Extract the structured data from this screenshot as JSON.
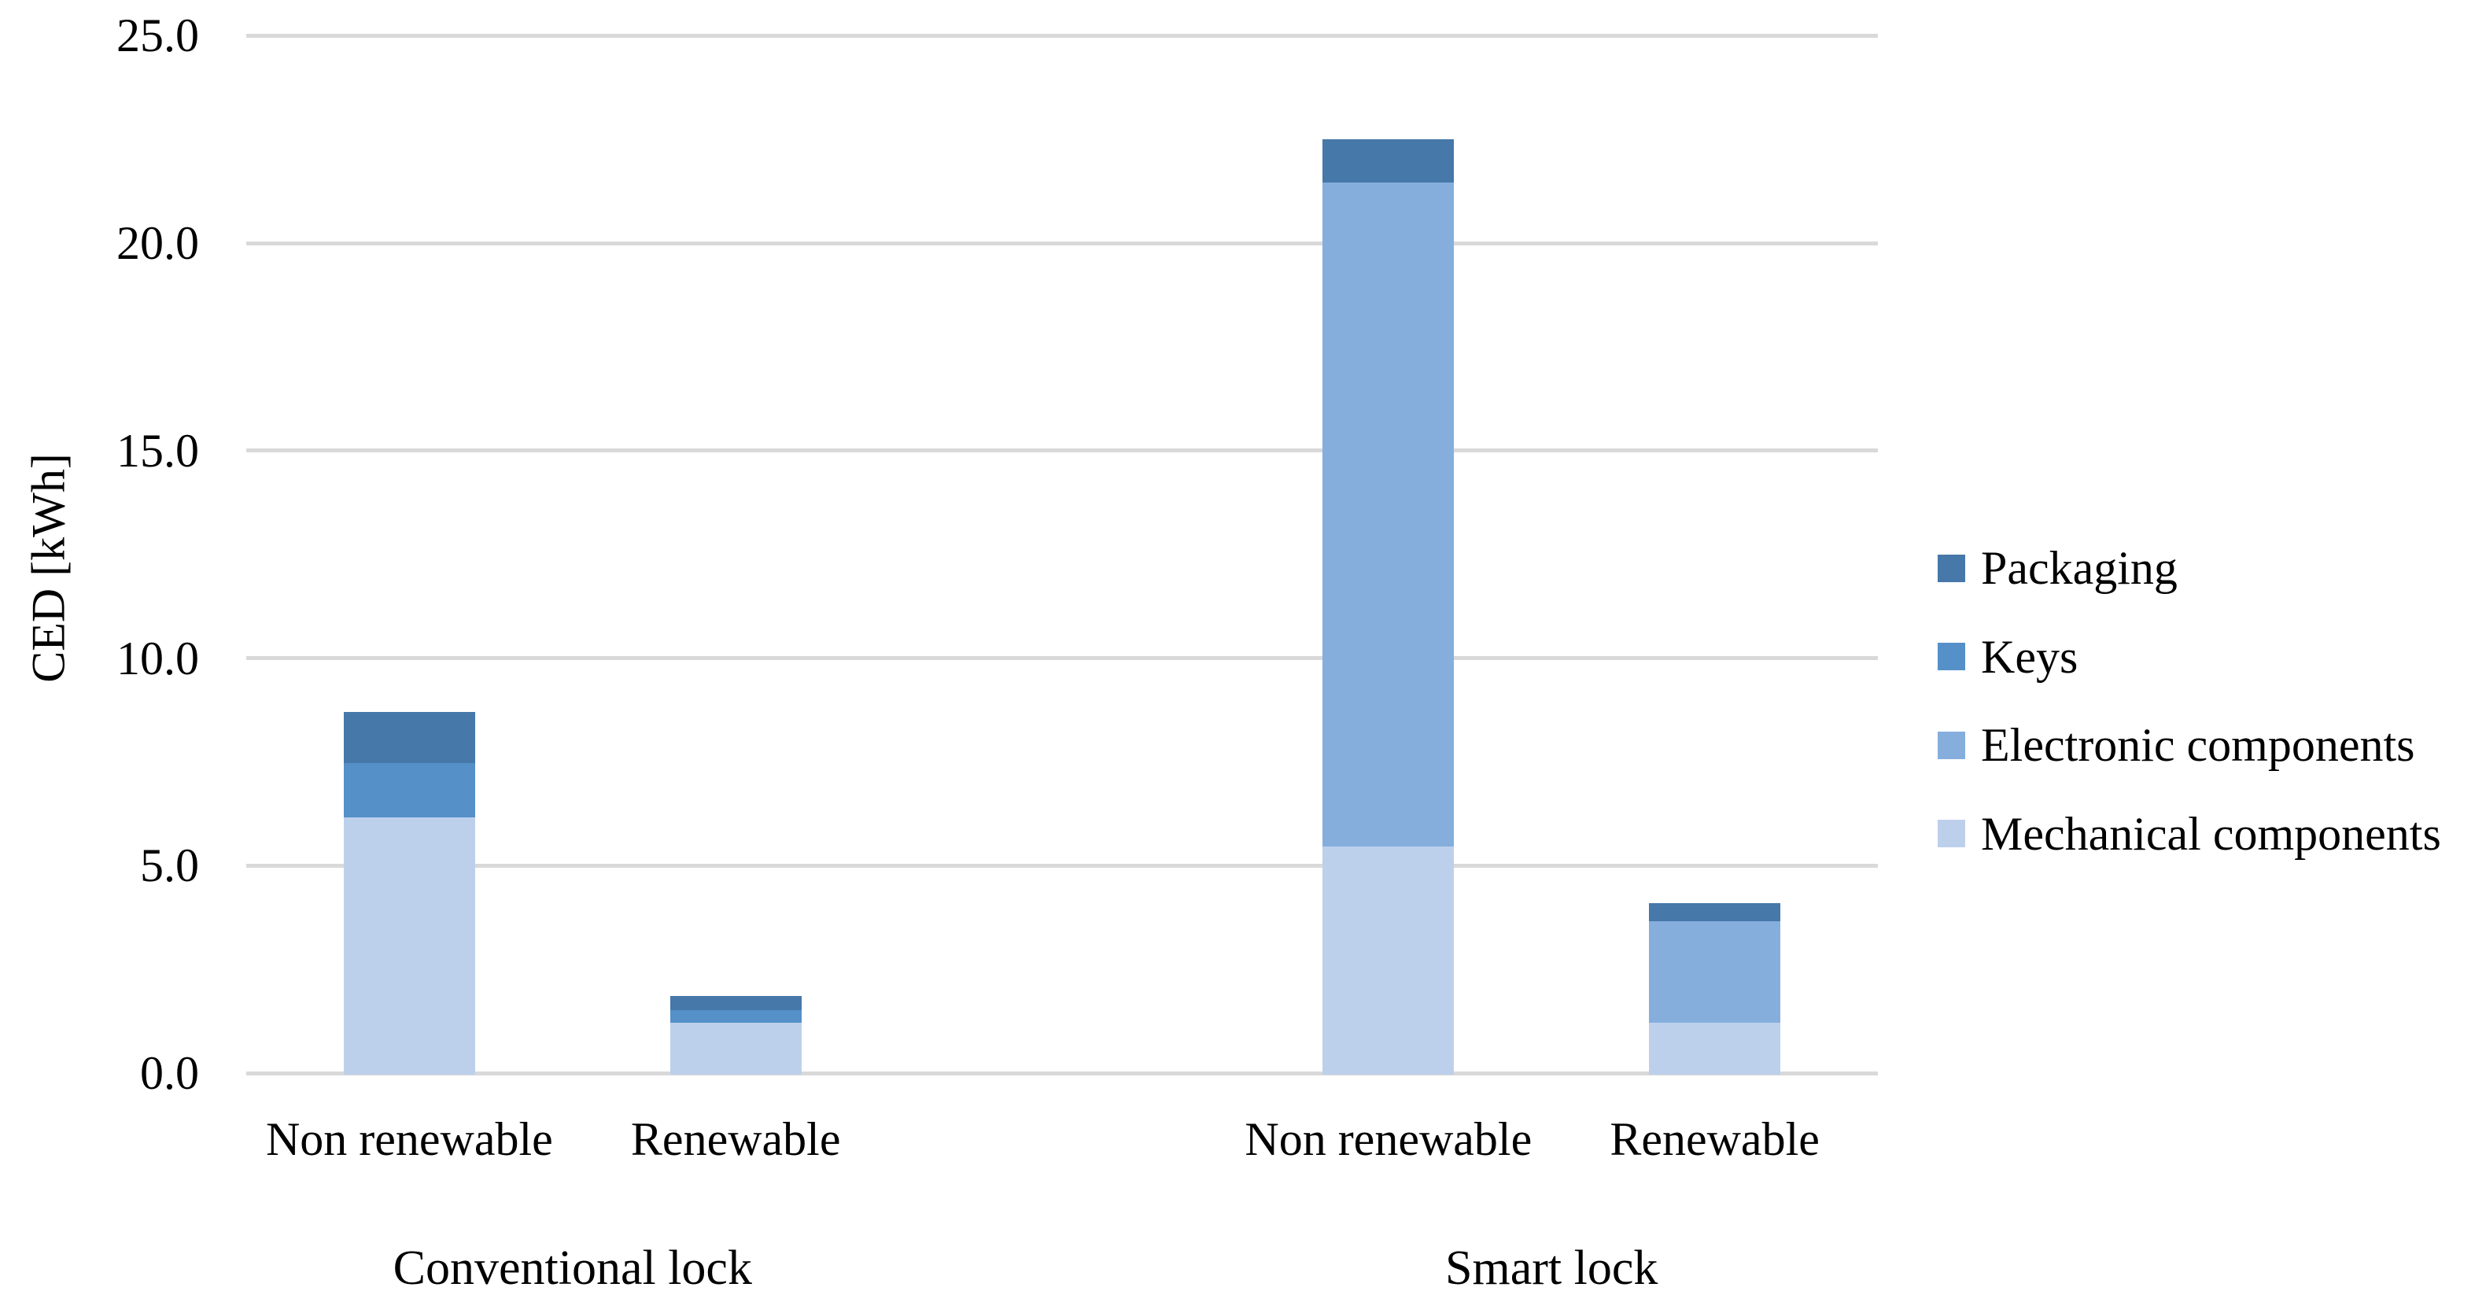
{
  "y_axis": {
    "title": "CED [kWh]",
    "tick_labels": [
      "0.0",
      "5.0",
      "10.0",
      "15.0",
      "20.0",
      "25.0"
    ]
  },
  "legend": [
    {
      "label": "Packaging",
      "color": "#4678a9"
    },
    {
      "label": "Keys",
      "color": "#5590c8"
    },
    {
      "label": "Electronic components",
      "color": "#85aedd"
    },
    {
      "label": "Mechanical components",
      "color": "#bdd0eb"
    }
  ],
  "chart_data": {
    "type": "bar",
    "stacked": true,
    "title": "",
    "xlabel": "",
    "ylabel": "CED [kWh]",
    "ylim": [
      0,
      25
    ],
    "ytick_step": 5,
    "grid": true,
    "legend_position": "right",
    "groups": [
      {
        "label": "Conventional lock",
        "categories": [
          "Non renewable",
          "Renewable"
        ]
      },
      {
        "label": "Smart lock",
        "categories": [
          "Non renewable",
          "Renewable"
        ]
      }
    ],
    "categories_flat": [
      "Non renewable",
      "Renewable",
      "Non renewable",
      "Renewable"
    ],
    "series": [
      {
        "name": "Mechanical components",
        "color": "#bdd0eb",
        "values": [
          6.2,
          1.25,
          5.5,
          1.25
        ]
      },
      {
        "name": "Electronic components",
        "color": "#85aedd",
        "values": [
          0.0,
          0.0,
          16.0,
          2.45
        ]
      },
      {
        "name": "Keys",
        "color": "#5590c8",
        "values": [
          1.3,
          0.3,
          0.0,
          0.0
        ]
      },
      {
        "name": "Packaging",
        "color": "#4678a9",
        "values": [
          1.2,
          0.3,
          1.0,
          0.4
        ]
      }
    ],
    "totals": [
      8.7,
      1.85,
      22.5,
      4.1
    ],
    "gridline_color": "#d9d9d9"
  }
}
